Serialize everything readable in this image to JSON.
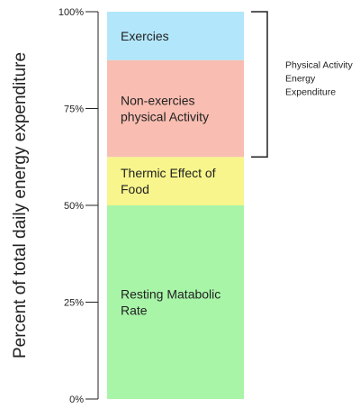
{
  "chart_data": {
    "type": "bar",
    "stacked": true,
    "ylabel": "Percent of total daily energy expenditure",
    "ylim": [
      0,
      100
    ],
    "yticks": [
      {
        "value": 0,
        "label": "0%"
      },
      {
        "value": 25,
        "label": "25%"
      },
      {
        "value": 50,
        "label": "50%"
      },
      {
        "value": 75,
        "label": "75%"
      },
      {
        "value": 100,
        "label": "100%"
      }
    ],
    "segments": [
      {
        "name": "Resting Matabolic Rate",
        "lines": [
          "Resting Matabolic",
          "Rate"
        ],
        "start": 0,
        "end": 50,
        "color": "#a8f5a8"
      },
      {
        "name": "Thermic Effect of Food",
        "lines": [
          "Thermic Effect of",
          "Food"
        ],
        "start": 50,
        "end": 62.5,
        "color": "#f7f58c"
      },
      {
        "name": "Non-exercies physical Activity",
        "lines": [
          "Non-exercies",
          "physical Activity"
        ],
        "start": 62.5,
        "end": 87.5,
        "color": "#f9bdb1"
      },
      {
        "name": "Exercies",
        "lines": [
          "Exercies"
        ],
        "start": 87.5,
        "end": 100,
        "color": "#b2e6fa"
      }
    ],
    "annotation": {
      "lines": [
        "Physical Activity",
        "Energy",
        "Expenditure"
      ],
      "start": 62.5,
      "end": 100
    }
  }
}
